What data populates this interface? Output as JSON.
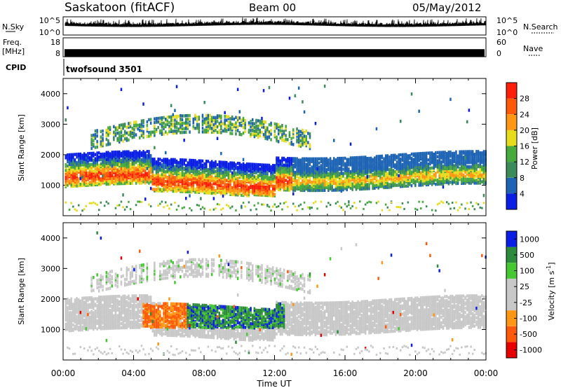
{
  "header": {
    "station": "Saskatoon (fitACF)",
    "beam": "Beam 00",
    "date": "05/May/2012"
  },
  "colors": {
    "power": [
      "#0a1ee6",
      "#1e64b4",
      "#3c8c5a",
      "#46aa3c",
      "#e6dc1e",
      "#ff9614",
      "#ff5a0a",
      "#ff1e0a"
    ],
    "velocity": [
      "#e60000",
      "#ff5a0a",
      "#ff9614",
      "#c8c8c8",
      "#c8c8c8",
      "#46c832",
      "#2d8c3c",
      "#0a1ee6"
    ]
  },
  "chart_data": [
    {
      "type": "line",
      "name": "nsky-nsearch",
      "left_label": "N.Sky",
      "right_label": "N.Search",
      "left_ticks": [
        "10^5",
        "10^0"
      ],
      "right_ticks": [
        "10^5",
        "10^0"
      ]
    },
    {
      "type": "line",
      "name": "freq-nave",
      "left_label_top": "Freq.",
      "left_label_bottom": "[MHz]",
      "right_label": "Nave",
      "left_ticks": [
        "18",
        "8"
      ],
      "right_ticks": [
        "60",
        "0"
      ],
      "freq_value_mhz": 11
    },
    {
      "type": "table",
      "name": "cpid",
      "label": "CPID",
      "value": "twofsound 3501"
    },
    {
      "type": "heatmap",
      "name": "power",
      "xlim": [
        0,
        24
      ],
      "ylim": [
        0,
        4500
      ],
      "ylabel": "Slant Range [km]",
      "y_ticks": [
        "1000",
        "2000",
        "3000",
        "4000"
      ],
      "y_tick_values": [
        1000,
        2000,
        3000,
        4000
      ],
      "colorbar_label": "Power [dB]",
      "colorbar_ticks": [
        "4",
        "8",
        "12",
        "16",
        "20",
        "24",
        "28"
      ],
      "colorbar_range": [
        0,
        32
      ]
    },
    {
      "type": "heatmap",
      "name": "velocity",
      "xlim": [
        0,
        24
      ],
      "ylim": [
        0,
        4500
      ],
      "ylabel": "Slant Range [km]",
      "y_ticks": [
        "1000",
        "2000",
        "3000",
        "4000"
      ],
      "y_tick_values": [
        1000,
        2000,
        3000,
        4000
      ],
      "colorbar_label": "Velocity [m s",
      "colorbar_label_sup": "-1",
      "colorbar_label_end": "]",
      "colorbar_ticks": [
        "1000",
        "500",
        "100",
        "25",
        "-25",
        "-100",
        "-500",
        "-1000"
      ]
    }
  ],
  "x_axis": {
    "ticks": [
      "00:00",
      "04:00",
      "08:00",
      "12:00",
      "16:00",
      "20:00",
      "00:00"
    ],
    "tick_values": [
      0,
      4,
      8,
      12,
      16,
      20,
      24
    ],
    "label": "Time UT"
  }
}
